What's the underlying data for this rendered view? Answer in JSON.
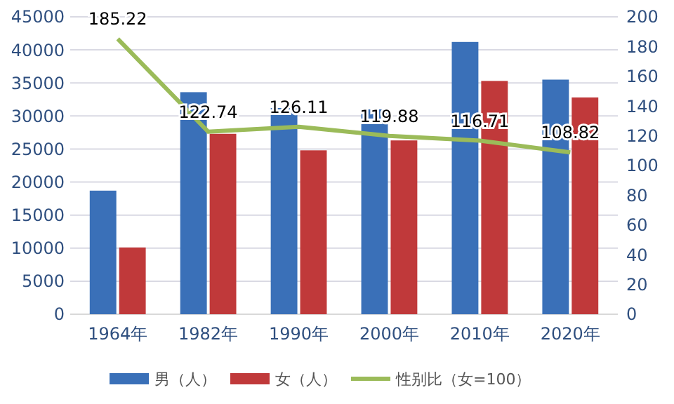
{
  "chart_data": {
    "type": "bar",
    "categories": [
      "1964年",
      "1982年",
      "1990年",
      "2000年",
      "2010年",
      "2020年"
    ],
    "series": [
      {
        "name": "男（人）",
        "color": "#3a70b8",
        "values": [
          18700,
          33600,
          31200,
          31000,
          41200,
          35500
        ]
      },
      {
        "name": "女（人）",
        "color": "#c0393a",
        "values": [
          10100,
          27300,
          24800,
          26300,
          35300,
          32800
        ]
      },
      {
        "name": "性别比（女=100）",
        "type": "line",
        "axis": "y2",
        "color": "#9bbb59",
        "values": [
          185.22,
          122.74,
          126.11,
          119.88,
          116.71,
          108.82
        ],
        "data_labels": true
      }
    ],
    "ylim": [
      0,
      45000
    ],
    "yticks": [
      0,
      5000,
      10000,
      15000,
      20000,
      25000,
      30000,
      35000,
      40000,
      45000
    ],
    "y2lim": [
      0,
      200
    ],
    "y2ticks": [
      0,
      20,
      40,
      60,
      80,
      100,
      120,
      140,
      160,
      180,
      200
    ],
    "grid": "y",
    "legend": "bottom",
    "marker": "none"
  }
}
